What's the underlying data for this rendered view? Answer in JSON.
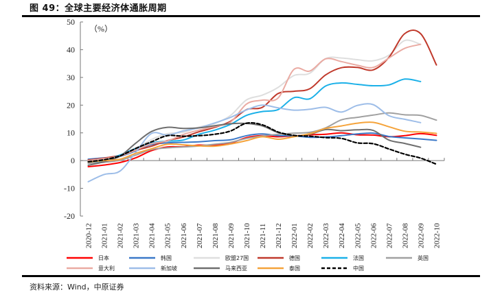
{
  "header": {
    "title": "图 49：全球主要经济体通胀周期"
  },
  "footer": {
    "source": "资料来源：Wind，中原证券"
  },
  "chart_data": {
    "type": "line",
    "title": "图 49：全球主要经济体通胀周期",
    "xlabel": "",
    "ylabel": "",
    "unit_label": "（%）",
    "ylim": [
      -20,
      50
    ],
    "yticks": [
      -20,
      -10,
      0,
      10,
      20,
      30,
      40,
      50
    ],
    "grid": false,
    "legend_position": "bottom",
    "categories": [
      "2020-12",
      "2021-01",
      "2021-02",
      "2021-03",
      "2021-04",
      "2021-05",
      "2021-06",
      "2021-07",
      "2021-08",
      "2021-09",
      "2021-10",
      "2021-11",
      "2021-12",
      "2022-01",
      "2022-02",
      "2022-03",
      "2022-04",
      "2022-05",
      "2022-06",
      "2022-07",
      "2022-08",
      "2022-09",
      "2022-10"
    ],
    "series": [
      {
        "name": "日本",
        "color": "#ff0000",
        "dash": false,
        "values": [
          -2.2,
          -1.6,
          -0.7,
          1.0,
          3.6,
          4.9,
          5.0,
          5.6,
          5.5,
          6.3,
          8.3,
          9.0,
          8.6,
          8.9,
          9.3,
          9.5,
          10.0,
          9.3,
          9.2,
          8.6,
          9.0,
          9.7,
          9.1
        ]
      },
      {
        "name": "韩国",
        "color": "#3a78c8",
        "dash": false,
        "values": [
          0.5,
          1.0,
          1.5,
          3.5,
          5.8,
          6.4,
          6.6,
          6.8,
          7.2,
          7.5,
          9.0,
          9.6,
          9.0,
          8.9,
          8.4,
          8.5,
          9.0,
          9.6,
          9.9,
          8.7,
          8.2,
          7.8,
          7.3
        ]
      },
      {
        "name": "欧盟27国",
        "color": "#dedede",
        "dash": false,
        "values": [
          -0.8,
          0.8,
          1.6,
          4.3,
          7.6,
          9.7,
          10.2,
          12.1,
          13.4,
          16.3,
          21.9,
          23.6,
          26.4,
          30.7,
          31.5,
          36.8,
          37.0,
          36.4,
          36.0,
          38.0,
          43.3,
          41.9,
          null
        ]
      },
      {
        "name": "德国",
        "color": "#c0392b",
        "dash": false,
        "values": [
          0.2,
          0.9,
          1.9,
          3.7,
          5.2,
          7.2,
          8.5,
          10.4,
          12.0,
          14.2,
          18.4,
          19.2,
          24.2,
          25.0,
          25.9,
          30.9,
          33.5,
          33.6,
          32.7,
          37.2,
          45.8,
          45.8,
          34.5
        ]
      },
      {
        "name": "法国",
        "color": "#1ab0e8",
        "dash": false,
        "values": [
          -1.0,
          0.0,
          2.0,
          4.4,
          6.4,
          7.0,
          7.4,
          9.5,
          11.0,
          13.1,
          16.3,
          17.7,
          18.4,
          22.7,
          22.3,
          26.9,
          28.0,
          27.5,
          27.0,
          27.3,
          29.4,
          28.5,
          null
        ]
      },
      {
        "name": "英国",
        "color": "#a0a0a0",
        "dash": false,
        "values": [
          -1.0,
          -0.6,
          0.1,
          2.0,
          4.0,
          4.6,
          4.9,
          5.3,
          5.9,
          6.6,
          8.0,
          8.9,
          9.5,
          9.9,
          10.2,
          11.8,
          14.7,
          15.6,
          16.4,
          17.2,
          16.5,
          16.3,
          14.6
        ]
      },
      {
        "name": "意大利",
        "color": "#eaaaa2",
        "dash": false,
        "values": [
          0.0,
          0.7,
          1.6,
          3.8,
          6.1,
          7.1,
          9.4,
          11.0,
          12.3,
          13.9,
          20.4,
          21.8,
          22.6,
          32.9,
          32.3,
          36.7,
          35.7,
          34.4,
          33.6,
          37.0,
          40.5,
          41.9,
          null
        ]
      },
      {
        "name": "新加坡",
        "color": "#9dbde8",
        "dash": false,
        "values": [
          -7.6,
          -5.0,
          -3.8,
          3.0,
          9.8,
          9.2,
          10.7,
          11.8,
          13.6,
          15.6,
          18.3,
          20.0,
          19.0,
          18.2,
          18.5,
          19.2,
          17.5,
          19.9,
          20.2,
          16.2,
          14.9,
          13.7,
          null
        ]
      },
      {
        "name": "马来西亚",
        "color": "#6e6e6e",
        "dash": false,
        "values": [
          -1.7,
          -0.4,
          1.6,
          6.3,
          10.5,
          12.0,
          11.6,
          11.8,
          12.6,
          13.3,
          13.4,
          12.5,
          10.1,
          9.0,
          9.5,
          11.2,
          10.8,
          11.1,
          10.9,
          7.4,
          6.2,
          4.8,
          null
        ]
      },
      {
        "name": "泰国",
        "color": "#f5a33a",
        "dash": false,
        "values": [
          -0.5,
          0.0,
          0.5,
          2.6,
          4.3,
          5.9,
          5.7,
          5.3,
          5.2,
          6.0,
          7.2,
          8.6,
          7.7,
          8.6,
          9.7,
          11.6,
          12.5,
          13.5,
          13.8,
          12.2,
          10.6,
          10.3,
          9.8
        ]
      },
      {
        "name": "中国",
        "color": "#000000",
        "dash": true,
        "values": [
          -0.4,
          0.3,
          1.7,
          4.4,
          6.8,
          9.0,
          8.8,
          9.0,
          9.5,
          10.7,
          13.5,
          12.9,
          10.3,
          9.1,
          8.8,
          8.3,
          8.0,
          6.4,
          6.1,
          4.2,
          2.3,
          0.9,
          -1.3
        ]
      }
    ]
  }
}
